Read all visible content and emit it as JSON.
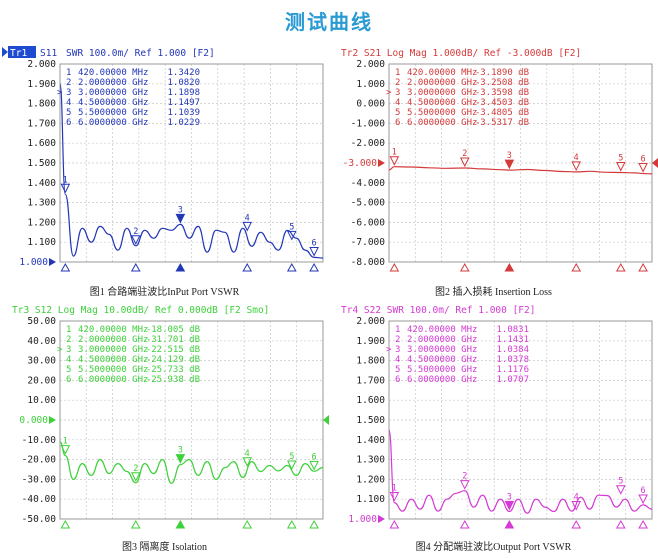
{
  "page_title": "测试曲线",
  "chart_data": [
    {
      "type": "line",
      "header": "SWR 100.0m/ Ref 1.000 [F2]",
      "trace_tag": "Tr1",
      "trace_param": "S11",
      "caption": "图1 合路端驻波比InPut Port VSWR",
      "color": "#2236b8",
      "ylim": [
        1.0,
        2.0
      ],
      "yticks": [
        "2.000",
        "1.900",
        "1.800",
        "1.700",
        "1.600",
        "1.500",
        "1.400",
        "1.300",
        "1.200",
        "1.100",
        "1.000"
      ],
      "ref_value": 1.0,
      "ref_label": "1.000",
      "ref_tick_index": 10,
      "x_ghz": [
        0.3,
        0.42,
        0.6,
        0.8,
        1.0,
        1.2,
        1.4,
        1.6,
        1.8,
        2.0,
        2.2,
        2.4,
        2.6,
        2.8,
        3.0,
        3.2,
        3.4,
        3.6,
        3.8,
        4.0,
        4.2,
        4.4,
        4.6,
        4.8,
        5.0,
        5.2,
        5.4,
        5.6,
        5.8,
        6.0,
        6.2
      ],
      "y": [
        1.9,
        1.342,
        1.03,
        1.17,
        1.1,
        1.18,
        1.14,
        1.06,
        1.17,
        1.082,
        1.16,
        1.12,
        1.17,
        1.16,
        1.19,
        1.12,
        1.18,
        1.05,
        1.16,
        1.15,
        1.05,
        1.17,
        1.08,
        1.15,
        1.1,
        1.06,
        1.16,
        1.12,
        1.06,
        1.023,
        1.02
      ],
      "markers": [
        {
          "id": "1",
          "active": false,
          "freq": "420.00000 MHz",
          "value": "1.3420",
          "x": 0.42,
          "y": 1.342
        },
        {
          "id": "2",
          "active": false,
          "freq": "2.0000000 GHz",
          "value": "1.0820",
          "x": 2.0,
          "y": 1.082
        },
        {
          "id": "3",
          "active": true,
          "freq": "3.0000000 GHz",
          "value": "1.1898",
          "x": 3.0,
          "y": 1.1898
        },
        {
          "id": "4",
          "active": false,
          "freq": "4.5000000 GHz",
          "value": "1.1497",
          "x": 4.5,
          "y": 1.1497
        },
        {
          "id": "5",
          "active": false,
          "freq": "5.5000000 GHz",
          "value": "1.1039",
          "x": 5.5,
          "y": 1.1039
        },
        {
          "id": "6",
          "active": false,
          "freq": "6.0000000 GHz",
          "value": "1.0229",
          "x": 6.0,
          "y": 1.0229
        }
      ],
      "markers_text_color": "#2236b8"
    },
    {
      "type": "line",
      "header": "Tr2 S21 Log Mag 1.000dB/ Ref -3.000dB [F2]",
      "caption": "图2 插入损耗 Insertion Loss",
      "color": "#d43a3a",
      "ylim": [
        -8.0,
        2.0
      ],
      "yticks": [
        "2.000",
        "1.000",
        "0.000",
        "-1.000",
        "-2.000",
        "-3.000",
        "-4.000",
        "-5.000",
        "-6.000",
        "-7.000",
        "-8.000"
      ],
      "ref_value": -3.0,
      "ref_label": "-3.000",
      "ref_tick_index": 5,
      "x_ghz": [
        0.3,
        0.42,
        0.8,
        1.2,
        1.6,
        2.0,
        2.4,
        2.8,
        3.0,
        3.4,
        3.8,
        4.2,
        4.5,
        4.8,
        5.2,
        5.5,
        5.8,
        6.0,
        6.2
      ],
      "y": [
        -3.35,
        -3.189,
        -3.2,
        -3.24,
        -3.27,
        -3.251,
        -3.3,
        -3.34,
        -3.36,
        -3.33,
        -3.38,
        -3.43,
        -3.45,
        -3.42,
        -3.47,
        -3.48,
        -3.5,
        -3.53,
        -3.55
      ],
      "markers": [
        {
          "id": "1",
          "active": false,
          "freq": "420.00000 MHz",
          "value": "-3.1890 dB",
          "x": 0.42,
          "y": -3.189
        },
        {
          "id": "2",
          "active": false,
          "freq": "2.0000000 GHz",
          "value": "-3.2508 dB",
          "x": 2.0,
          "y": -3.2508
        },
        {
          "id": "3",
          "active": true,
          "freq": "3.0000000 GHz",
          "value": "-3.3598 dB",
          "x": 3.0,
          "y": -3.3598
        },
        {
          "id": "4",
          "active": false,
          "freq": "4.5000000 GHz",
          "value": "-3.4503 dB",
          "x": 4.5,
          "y": -3.4503
        },
        {
          "id": "5",
          "active": false,
          "freq": "5.5000000 GHz",
          "value": "-3.4805 dB",
          "x": 5.5,
          "y": -3.4805
        },
        {
          "id": "6",
          "active": false,
          "freq": "6.0000000 GHz",
          "value": "-3.5317 dB",
          "x": 6.0,
          "y": -3.5317
        }
      ],
      "markers_text_color": "#d43a3a"
    },
    {
      "type": "line",
      "header": "Tr3 S12 Log Mag 10.00dB/ Ref 0.000dB [F2 Smo]",
      "caption": "图3 隔离度 Isolation",
      "color": "#3dd13a",
      "ylim": [
        -50.0,
        50.0
      ],
      "yticks": [
        "50.00",
        "40.00",
        "30.00",
        "20.00",
        "10.00",
        "0.000",
        "-10.00",
        "-20.00",
        "-30.00",
        "-40.00",
        "-50.00"
      ],
      "ref_value": 0.0,
      "ref_label": "0.000",
      "ref_tick_index": 5,
      "x_ghz": [
        0.3,
        0.42,
        0.6,
        0.8,
        1.0,
        1.2,
        1.4,
        1.6,
        1.8,
        2.0,
        2.2,
        2.4,
        2.6,
        2.8,
        3.0,
        3.2,
        3.4,
        3.6,
        3.8,
        4.0,
        4.2,
        4.4,
        4.6,
        4.8,
        5.0,
        5.2,
        5.4,
        5.6,
        5.8,
        6.0,
        6.2
      ],
      "y": [
        -11,
        -18.0,
        -30,
        -22,
        -28,
        -20,
        -27,
        -22,
        -26,
        -31.7,
        -22,
        -27,
        -20,
        -32,
        -22.5,
        -20,
        -28,
        -21,
        -30,
        -24.1,
        -21,
        -29,
        -21,
        -26,
        -23,
        -25.7,
        -23,
        -28,
        -22,
        -25.9,
        -24
      ],
      "markers": [
        {
          "id": "1",
          "active": false,
          "freq": "420.00000 MHz",
          "value": "-18.005 dB",
          "x": 0.42,
          "y": -18.005
        },
        {
          "id": "2",
          "active": false,
          "freq": "2.0000000 GHz",
          "value": "-31.701 dB",
          "x": 2.0,
          "y": -31.701
        },
        {
          "id": "3",
          "active": true,
          "freq": "3.0000000 GHz",
          "value": "-22.515 dB",
          "x": 3.0,
          "y": -22.515
        },
        {
          "id": "4",
          "active": false,
          "freq": "4.5000000 GHz",
          "value": "-24.129 dB",
          "x": 4.5,
          "y": -24.129
        },
        {
          "id": "5",
          "active": false,
          "freq": "5.5000000 GHz",
          "value": "-25.733 dB",
          "x": 5.5,
          "y": -25.733
        },
        {
          "id": "6",
          "active": false,
          "freq": "6.0000000 GHz",
          "value": "-25.938 dB",
          "x": 6.0,
          "y": -25.938
        }
      ],
      "markers_text_color": "#3dd13a"
    },
    {
      "type": "line",
      "header": "Tr4 S22 SWR 100.0m/ Ref 1.000 [F2]",
      "caption": "图4 分配端驻波比Output Port VSWR",
      "color": "#d43ad4",
      "ylim": [
        1.0,
        2.0
      ],
      "yticks": [
        "2.000",
        "1.900",
        "1.800",
        "1.700",
        "1.600",
        "1.500",
        "1.400",
        "1.300",
        "1.200",
        "1.100",
        "1.000"
      ],
      "ref_value": 1.0,
      "ref_label": "1.000",
      "ref_tick_index": 10,
      "x_ghz": [
        0.3,
        0.42,
        0.6,
        0.8,
        1.0,
        1.2,
        1.4,
        1.6,
        1.8,
        2.0,
        2.2,
        2.4,
        2.6,
        2.8,
        3.0,
        3.2,
        3.4,
        3.6,
        3.8,
        4.0,
        4.2,
        4.4,
        4.6,
        4.8,
        5.0,
        5.2,
        5.4,
        5.6,
        5.8,
        6.0,
        6.2
      ],
      "y": [
        1.45,
        1.083,
        1.04,
        1.1,
        1.05,
        1.12,
        1.04,
        1.1,
        1.13,
        1.143,
        1.06,
        1.12,
        1.04,
        1.1,
        1.038,
        1.1,
        1.03,
        1.1,
        1.06,
        1.038,
        1.1,
        1.04,
        1.11,
        1.05,
        1.12,
        1.118,
        1.06,
        1.1,
        1.04,
        1.071,
        1.05
      ],
      "markers": [
        {
          "id": "1",
          "active": false,
          "freq": "420.00000 MHz",
          "value": "1.0831",
          "x": 0.42,
          "y": 1.0831
        },
        {
          "id": "2",
          "active": false,
          "freq": "2.0000000 GHz",
          "value": "1.1431",
          "x": 2.0,
          "y": 1.1431
        },
        {
          "id": "3",
          "active": true,
          "freq": "3.0000000 GHz",
          "value": "1.0384",
          "x": 3.0,
          "y": 1.0384
        },
        {
          "id": "4",
          "active": false,
          "freq": "4.5000000 GHz",
          "value": "1.0378",
          "x": 4.5,
          "y": 1.0378
        },
        {
          "id": "5",
          "active": false,
          "freq": "5.5000000 GHz",
          "value": "1.1176",
          "x": 5.5,
          "y": 1.1176
        },
        {
          "id": "6",
          "active": false,
          "freq": "6.0000000 GHz",
          "value": "1.0707",
          "x": 6.0,
          "y": 1.0707
        }
      ],
      "markers_text_color": "#d43ad4"
    }
  ]
}
